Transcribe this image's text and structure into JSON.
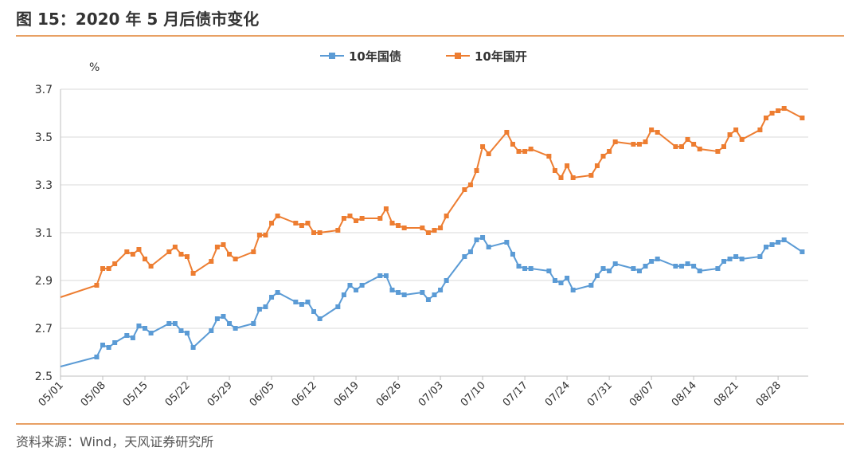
{
  "header": {
    "title": "图 15：2020 年 5 月后债市变化"
  },
  "footer": {
    "source": "资料来源：Wind，天风证券研究所"
  },
  "chart_data": {
    "type": "line",
    "title": "",
    "ylabel": "%",
    "ylim": [
      2.5,
      3.7
    ],
    "yticks": [
      "2.5",
      "2.7",
      "2.9",
      "3.1",
      "3.3",
      "3.5",
      "3.7"
    ],
    "xticks": [
      "05/01",
      "05/08",
      "05/15",
      "05/22",
      "05/29",
      "06/05",
      "06/12",
      "06/19",
      "06/26",
      "07/03",
      "07/10",
      "07/17",
      "07/24",
      "07/31",
      "08/07",
      "08/14",
      "08/21",
      "08/28"
    ],
    "xrange": [
      0,
      124
    ],
    "grid": true,
    "legend": "top-center",
    "series": [
      {
        "name": "10年国债",
        "color": "#5B9BD5",
        "x": [
          0,
          6,
          7,
          8,
          9,
          11,
          12,
          13,
          14,
          15,
          18,
          19,
          20,
          21,
          22,
          25,
          26,
          27,
          28,
          29,
          32,
          33,
          34,
          35,
          36,
          39,
          40,
          41,
          42,
          43,
          46,
          47,
          48,
          49,
          50,
          53,
          54,
          55,
          56,
          57,
          60,
          61,
          62,
          63,
          64,
          67,
          68,
          69,
          70,
          71,
          74,
          75,
          76,
          77,
          78,
          81,
          82,
          83,
          84,
          85,
          88,
          89,
          90,
          91,
          92,
          95,
          96,
          97,
          98,
          99,
          102,
          103,
          104,
          105,
          106,
          109,
          110,
          111,
          112,
          113,
          116,
          117,
          118,
          119,
          120,
          123
        ],
        "y": [
          2.54,
          2.58,
          2.63,
          2.62,
          2.64,
          2.67,
          2.66,
          2.71,
          2.7,
          2.68,
          2.72,
          2.72,
          2.69,
          2.68,
          2.62,
          2.69,
          2.74,
          2.75,
          2.72,
          2.7,
          2.72,
          2.78,
          2.79,
          2.83,
          2.85,
          2.81,
          2.8,
          2.81,
          2.77,
          2.74,
          2.79,
          2.84,
          2.88,
          2.86,
          2.88,
          2.92,
          2.92,
          2.86,
          2.85,
          2.84,
          2.85,
          2.82,
          2.84,
          2.86,
          2.9,
          3.0,
          3.02,
          3.07,
          3.08,
          3.04,
          3.06,
          3.01,
          2.96,
          2.95,
          2.95,
          2.94,
          2.9,
          2.89,
          2.91,
          2.86,
          2.88,
          2.92,
          2.95,
          2.94,
          2.97,
          2.95,
          2.94,
          2.96,
          2.98,
          2.99,
          2.96,
          2.96,
          2.97,
          2.96,
          2.94,
          2.95,
          2.98,
          2.99,
          3.0,
          2.99,
          3.0,
          3.04,
          3.05,
          3.06,
          3.07,
          3.02
        ]
      },
      {
        "name": "10年国开",
        "color": "#ED7D31",
        "x": [
          0,
          6,
          7,
          8,
          9,
          11,
          12,
          13,
          14,
          15,
          18,
          19,
          20,
          21,
          22,
          25,
          26,
          27,
          28,
          29,
          32,
          33,
          34,
          35,
          36,
          39,
          40,
          41,
          42,
          43,
          46,
          47,
          48,
          49,
          50,
          53,
          54,
          55,
          56,
          57,
          60,
          61,
          62,
          63,
          64,
          67,
          68,
          69,
          70,
          71,
          74,
          75,
          76,
          77,
          78,
          81,
          82,
          83,
          84,
          85,
          88,
          89,
          90,
          91,
          92,
          95,
          96,
          97,
          98,
          99,
          102,
          103,
          104,
          105,
          106,
          109,
          110,
          111,
          112,
          113,
          116,
          117,
          118,
          119,
          120,
          123
        ],
        "y": [
          2.83,
          2.88,
          2.95,
          2.95,
          2.97,
          3.02,
          3.01,
          3.03,
          2.99,
          2.96,
          3.02,
          3.04,
          3.01,
          3.0,
          2.93,
          2.98,
          3.04,
          3.05,
          3.01,
          2.99,
          3.02,
          3.09,
          3.09,
          3.14,
          3.17,
          3.14,
          3.13,
          3.14,
          3.1,
          3.1,
          3.11,
          3.16,
          3.17,
          3.15,
          3.16,
          3.16,
          3.2,
          3.14,
          3.13,
          3.12,
          3.12,
          3.1,
          3.11,
          3.12,
          3.17,
          3.28,
          3.3,
          3.36,
          3.46,
          3.43,
          3.52,
          3.47,
          3.44,
          3.44,
          3.45,
          3.42,
          3.36,
          3.33,
          3.38,
          3.33,
          3.34,
          3.38,
          3.42,
          3.44,
          3.48,
          3.47,
          3.47,
          3.48,
          3.53,
          3.52,
          3.46,
          3.46,
          3.49,
          3.47,
          3.45,
          3.44,
          3.46,
          3.51,
          3.53,
          3.49,
          3.53,
          3.58,
          3.6,
          3.61,
          3.62,
          3.58
        ]
      }
    ]
  }
}
